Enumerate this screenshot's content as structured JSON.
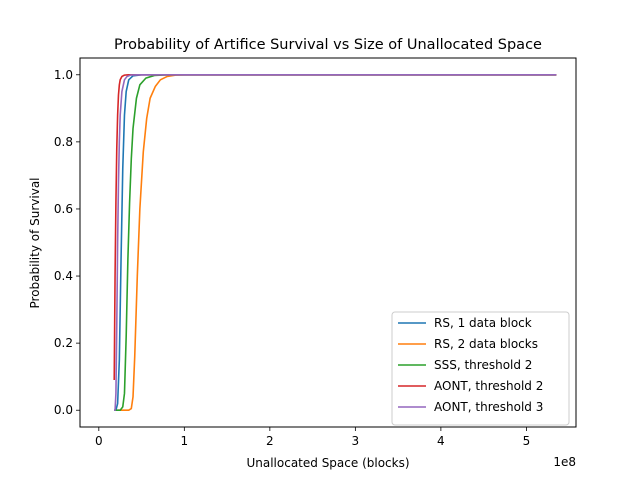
{
  "chart_data": {
    "type": "line",
    "title": "Probability of Artifice Survival vs Size of Unallocated Space",
    "xlabel": "Unallocated Space (blocks)",
    "ylabel": "Probability of Survival",
    "x_offset_label": "1e8",
    "xlim": [
      -0.22,
      5.58
    ],
    "ylim": [
      -0.05,
      1.05
    ],
    "x_scale_note": "x values in units of 1e8 blocks",
    "xticks": [
      0,
      1,
      2,
      3,
      4,
      5
    ],
    "xtick_labels": [
      "0",
      "1",
      "2",
      "3",
      "4",
      "5"
    ],
    "yticks": [
      0.0,
      0.2,
      0.4,
      0.6,
      0.8,
      1.0
    ],
    "ytick_labels": [
      "0.0",
      "0.2",
      "0.4",
      "0.6",
      "0.8",
      "1.0"
    ],
    "grid": false,
    "legend_position": "lower-right",
    "series": [
      {
        "name": "RS, 1 data block",
        "color": "#1f77b4",
        "x": [
          0.18,
          0.2,
          0.22,
          0.24,
          0.26,
          0.28,
          0.3,
          0.32,
          0.35,
          0.4,
          0.5,
          0.7,
          1.0,
          5.35
        ],
        "y": [
          0.0,
          0.0,
          0.02,
          0.15,
          0.45,
          0.72,
          0.88,
          0.95,
          0.985,
          0.997,
          1.0,
          1.0,
          1.0,
          1.0
        ]
      },
      {
        "name": "RS, 2 data blocks",
        "color": "#ff7f0e",
        "x": [
          0.22,
          0.3,
          0.35,
          0.38,
          0.4,
          0.42,
          0.45,
          0.48,
          0.52,
          0.56,
          0.6,
          0.66,
          0.72,
          0.8,
          0.9,
          1.0,
          1.2,
          5.35
        ],
        "y": [
          0.0,
          0.0,
          0.0,
          0.005,
          0.04,
          0.16,
          0.4,
          0.6,
          0.77,
          0.87,
          0.93,
          0.965,
          0.985,
          0.995,
          0.999,
          1.0,
          1.0,
          1.0
        ]
      },
      {
        "name": "SSS, threshold 2",
        "color": "#2ca02c",
        "x": [
          0.18,
          0.22,
          0.25,
          0.28,
          0.3,
          0.32,
          0.34,
          0.36,
          0.38,
          0.4,
          0.44,
          0.48,
          0.55,
          0.65,
          0.8,
          1.0,
          5.35
        ],
        "y": [
          0.0,
          0.0,
          0.0,
          0.01,
          0.05,
          0.22,
          0.45,
          0.62,
          0.75,
          0.84,
          0.93,
          0.97,
          0.99,
          0.998,
          1.0,
          1.0,
          1.0
        ]
      },
      {
        "name": "AONT, threshold 2",
        "color": "#d62728",
        "x": [
          0.18,
          0.19,
          0.2,
          0.21,
          0.22,
          0.23,
          0.24,
          0.25,
          0.27,
          0.3,
          0.35,
          0.45,
          1.0,
          5.35
        ],
        "y": [
          0.09,
          0.4,
          0.62,
          0.78,
          0.88,
          0.94,
          0.97,
          0.985,
          0.995,
          0.999,
          1.0,
          1.0,
          1.0,
          1.0
        ]
      },
      {
        "name": "AONT, threshold 3",
        "color": "#9467bd",
        "x": [
          0.18,
          0.19,
          0.2,
          0.21,
          0.22,
          0.23,
          0.24,
          0.25,
          0.27,
          0.3,
          0.33,
          0.37,
          0.45,
          0.6,
          1.0,
          5.35
        ],
        "y": [
          0.0,
          0.0,
          0.05,
          0.25,
          0.5,
          0.68,
          0.8,
          0.88,
          0.95,
          0.985,
          0.995,
          0.999,
          1.0,
          1.0,
          1.0,
          1.0
        ]
      }
    ]
  }
}
